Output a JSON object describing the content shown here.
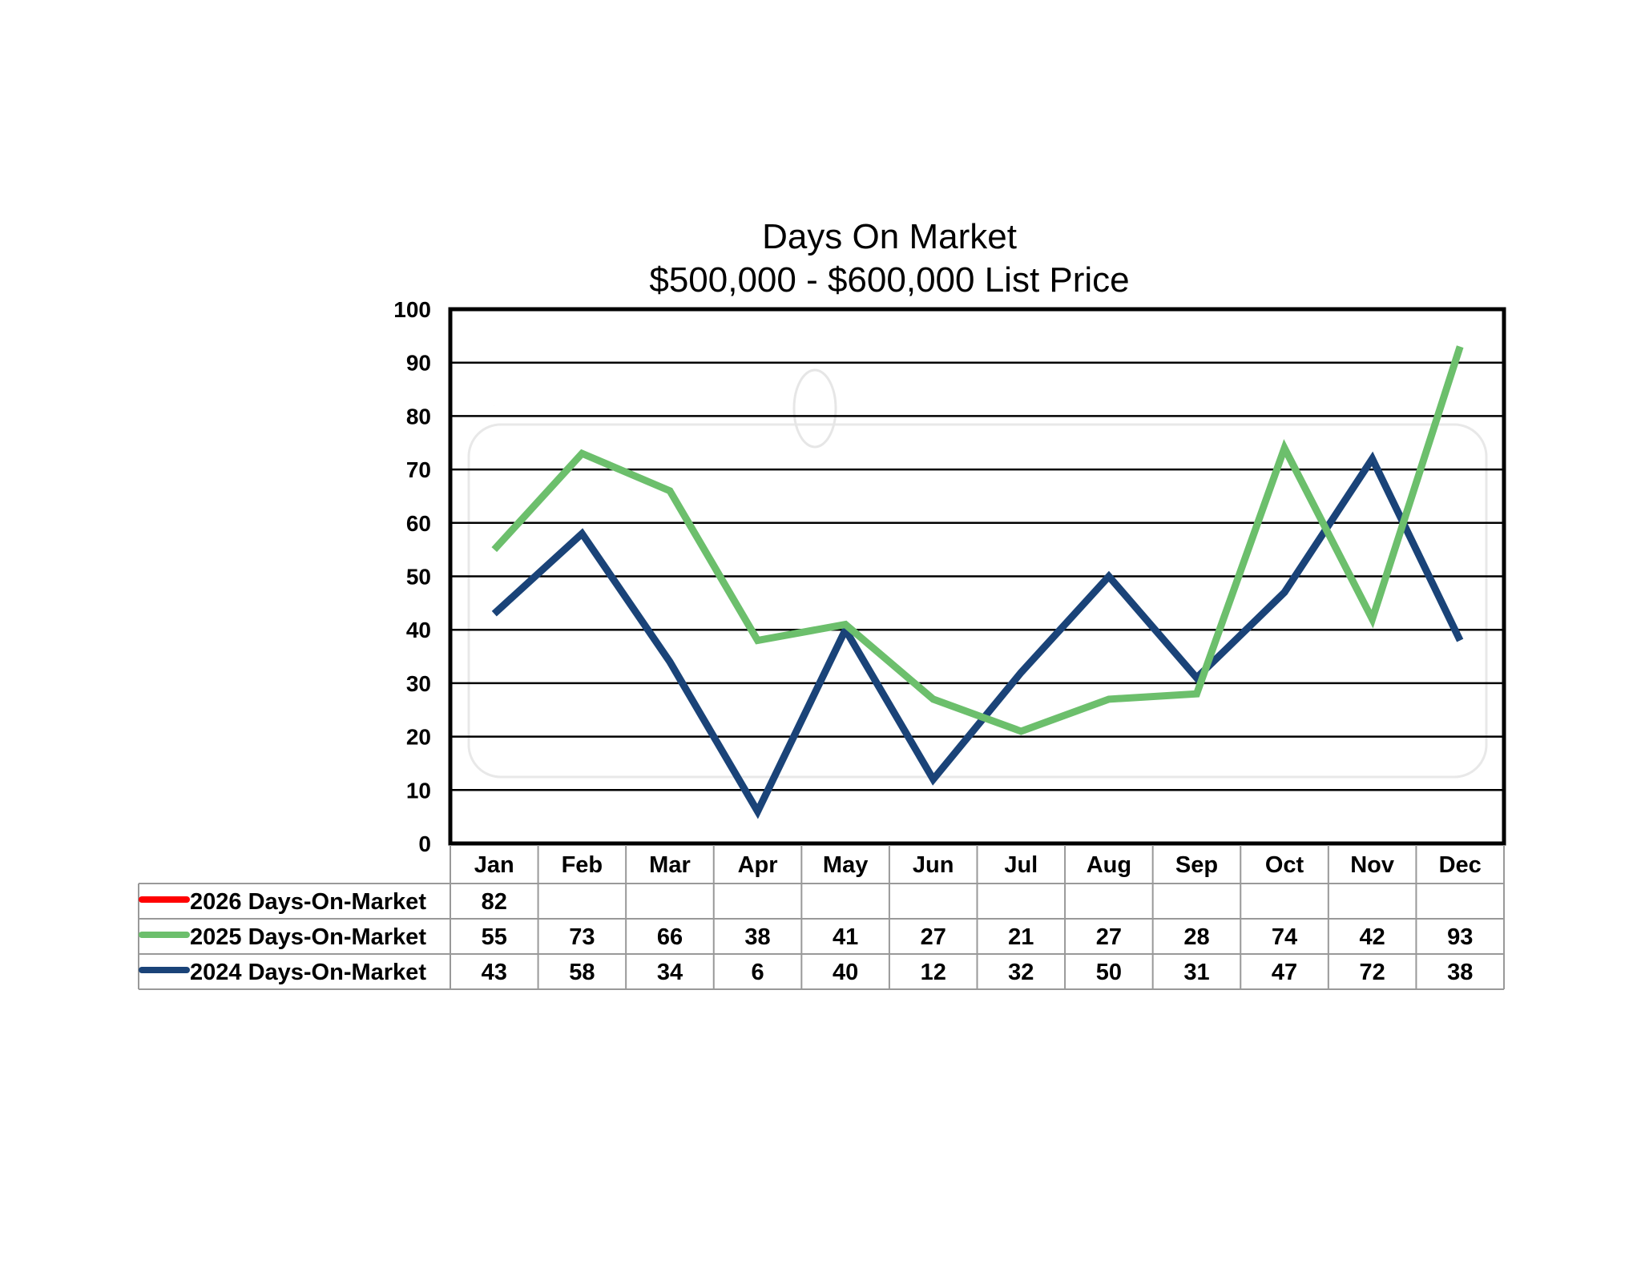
{
  "chart_data": {
    "type": "line",
    "title": "Days On Market",
    "subtitle": "$500,000 - $600,000 List Price",
    "categories": [
      "Jan",
      "Feb",
      "Mar",
      "Apr",
      "May",
      "Jun",
      "Jul",
      "Aug",
      "Sep",
      "Oct",
      "Nov",
      "Dec"
    ],
    "ylim": [
      0,
      100
    ],
    "yticks": [
      0,
      10,
      20,
      30,
      40,
      50,
      60,
      70,
      80,
      90,
      100
    ],
    "grid": true,
    "legend": "data-table-below",
    "series": [
      {
        "name": "2026 Days-On-Market",
        "color": "#ff0000",
        "values": [
          82,
          null,
          null,
          null,
          null,
          null,
          null,
          null,
          null,
          null,
          null,
          null
        ]
      },
      {
        "name": "2025 Days-On-Market",
        "color": "#6cbf6c",
        "values": [
          55,
          73,
          66,
          38,
          41,
          27,
          21,
          27,
          28,
          74,
          42,
          93
        ]
      },
      {
        "name": "2024 Days-On-Market",
        "color": "#1a4378",
        "values": [
          43,
          58,
          34,
          6,
          40,
          12,
          32,
          50,
          31,
          47,
          72,
          38
        ]
      }
    ]
  }
}
